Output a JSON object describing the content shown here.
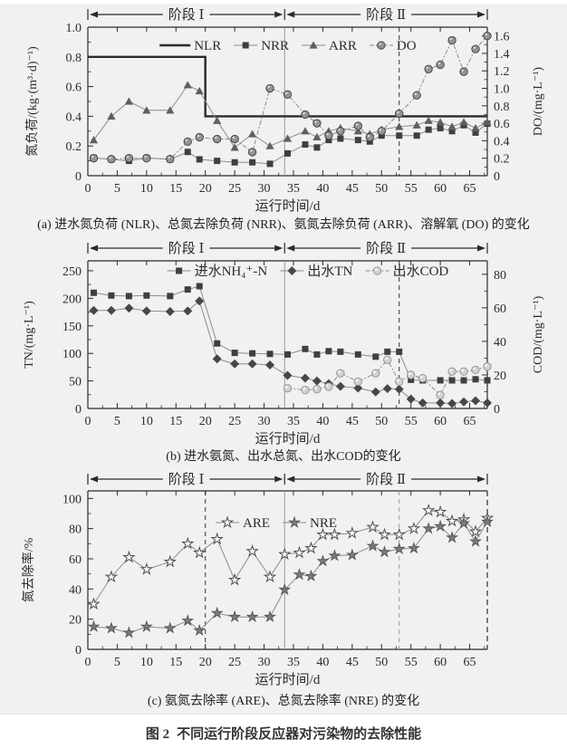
{
  "page": {
    "figure_caption_bold": "图 2",
    "figure_caption": "不同运行阶段反应器对污染物的去除性能",
    "colors": {
      "ink": "#2b2b2b",
      "gray_line": "#8c8c8c",
      "marker_square": "#3f3f3f",
      "marker_triangle": "#5f5f5f",
      "marker_diamond": "#474747",
      "sphere_dark_fill": "#949494",
      "sphere_dark_edge": "#3d3d3d",
      "sphere_light_fill": "#d2d2d2",
      "sphere_light_edge": "#8f8f8f",
      "star_fill": "#7b7b7b",
      "star_edge": "#4f4f4f",
      "phase_solid_line": "#9a9a9a",
      "dashed_black": "#333333",
      "dashed_gray": "#9a9a9a"
    }
  },
  "phases": {
    "label_1": "阶段 Ⅰ",
    "label_2": "阶段 Ⅱ",
    "boundary_day": 33.5,
    "x_start": 0,
    "x_end": 68
  },
  "chart_data": [
    {
      "id": "a",
      "type": "line",
      "caption": "(a) 进水氮负荷 (NLR)、总氮去除负荷 (NRR)、氨氮去除负荷 (ARR)、溶解氧 (DO) 的变化",
      "xlabel": "运行时间/d",
      "ylabel_left": "氮负荷/(kg·(m³·d)⁻¹)",
      "ylabel_right": "DO/(mg·L⁻¹)",
      "x_range": [
        0,
        68
      ],
      "x_ticks": [
        0,
        5,
        10,
        15,
        20,
        25,
        30,
        35,
        40,
        45,
        50,
        55,
        60,
        65
      ],
      "left_max": 1.0,
      "left_ticks": [
        0,
        0.2,
        0.4,
        0.6,
        0.8,
        1.0
      ],
      "left_decimals": 1,
      "right_max": 1.7,
      "right_ticks": [
        0,
        0.2,
        0.4,
        0.6,
        0.8,
        1.0,
        1.2,
        1.4,
        1.6
      ],
      "right_decimals": 1,
      "vlines": [
        {
          "x": 33.5,
          "style": "solid"
        },
        {
          "x": 53,
          "style": "dashed-black"
        }
      ],
      "right_spine_dashed": false,
      "series": [
        {
          "label": "NLR",
          "axis": "left",
          "marker": "none",
          "line": "thick",
          "x": [
            0,
            20,
            20,
            68
          ],
          "y": [
            0.8,
            0.8,
            0.4,
            0.4
          ]
        },
        {
          "label": "NRR",
          "axis": "left",
          "marker": "square",
          "line": "thin",
          "x": [
            1,
            4,
            7,
            10,
            14,
            17,
            19,
            22,
            25,
            28,
            31,
            34,
            37,
            39,
            41,
            43,
            46,
            48,
            50,
            53,
            56,
            58,
            60,
            62,
            64,
            66,
            68
          ],
          "y": [
            0.12,
            0.11,
            0.1,
            0.12,
            0.11,
            0.16,
            0.11,
            0.1,
            0.09,
            0.09,
            0.08,
            0.15,
            0.21,
            0.19,
            0.24,
            0.25,
            0.24,
            0.23,
            0.27,
            0.27,
            0.27,
            0.31,
            0.32,
            0.3,
            0.34,
            0.29,
            0.35
          ]
        },
        {
          "label": "ARR",
          "axis": "left",
          "marker": "triangle",
          "line": "thin",
          "x": [
            1,
            4,
            7,
            10,
            14,
            17,
            19,
            22,
            25,
            28,
            31,
            34,
            37,
            39,
            41,
            43,
            46,
            48,
            50,
            53,
            56,
            58,
            60,
            62,
            64,
            66,
            68
          ],
          "y": [
            0.24,
            0.4,
            0.5,
            0.44,
            0.44,
            0.61,
            0.57,
            0.37,
            0.19,
            0.28,
            0.2,
            0.25,
            0.3,
            0.26,
            0.3,
            0.32,
            0.3,
            0.28,
            0.31,
            0.33,
            0.34,
            0.37,
            0.36,
            0.33,
            0.36,
            0.32,
            0.36
          ]
        },
        {
          "label": "DO",
          "axis": "right",
          "marker": "sphere",
          "line": "dash",
          "x": [
            1,
            4,
            7,
            10,
            14,
            17,
            19,
            22,
            25,
            28,
            31,
            34,
            37,
            39,
            41,
            43,
            46,
            48,
            50,
            53,
            56,
            58,
            60,
            62,
            64,
            66,
            68
          ],
          "y": [
            0.2,
            0.19,
            0.2,
            0.2,
            0.19,
            0.39,
            0.44,
            0.42,
            0.42,
            0.27,
            1.0,
            0.93,
            0.7,
            0.6,
            0.46,
            0.51,
            0.57,
            0.44,
            0.51,
            0.71,
            0.92,
            1.22,
            1.27,
            1.55,
            1.19,
            1.45,
            1.6
          ]
        }
      ]
    },
    {
      "id": "b",
      "type": "line",
      "caption": "(b) 进水氨氮、出水总氮、出水COD的变化",
      "xlabel": "运行时间/d",
      "ylabel_left": "TN/(mg·L⁻¹)",
      "ylabel_right": "COD/(mg·L⁻¹)",
      "x_range": [
        0,
        68
      ],
      "x_ticks": [
        0,
        5,
        10,
        15,
        20,
        25,
        30,
        35,
        40,
        45,
        50,
        55,
        60,
        65
      ],
      "left_max": 268,
      "left_ticks": [
        0,
        50,
        100,
        150,
        200,
        250
      ],
      "left_decimals": 0,
      "right_max": 88,
      "right_ticks": [
        0,
        20,
        40,
        60,
        80
      ],
      "right_decimals": 0,
      "vlines": [
        {
          "x": 33.5,
          "style": "solid"
        },
        {
          "x": 53,
          "style": "dashed-black"
        }
      ],
      "right_spine_dashed": false,
      "series": [
        {
          "label": "进水NH₄⁺-N",
          "axis": "left",
          "marker": "square",
          "line": "thin",
          "x": [
            1,
            4,
            7,
            10,
            14,
            17,
            19,
            22,
            25,
            28,
            31,
            34,
            37,
            39,
            41,
            43,
            46,
            49,
            51,
            53,
            55,
            57,
            60,
            62,
            64,
            66,
            68
          ],
          "y": [
            210,
            205,
            204,
            205,
            204,
            216,
            222,
            118,
            101,
            100,
            99,
            98,
            108,
            98,
            104,
            103,
            98,
            94,
            103,
            103,
            52,
            51,
            51,
            51,
            51,
            53,
            51
          ]
        },
        {
          "label": "出水TN",
          "axis": "left",
          "marker": "diamond",
          "line": "thin",
          "x": [
            1,
            4,
            7,
            10,
            14,
            17,
            19,
            22,
            25,
            28,
            31,
            34,
            37,
            39,
            41,
            43,
            46,
            49,
            51,
            53,
            55,
            57,
            60,
            62,
            64,
            66,
            68
          ],
          "y": [
            178,
            178,
            182,
            177,
            176,
            177,
            195,
            90,
            81,
            81,
            79,
            60,
            55,
            50,
            45,
            40,
            37,
            30,
            36,
            35,
            17,
            10,
            10,
            9,
            12,
            14,
            10
          ]
        },
        {
          "label": "出水COD",
          "axis": "right",
          "marker": "sphere-light",
          "line": "dash",
          "x": [
            1,
            4,
            7,
            10,
            14,
            17,
            19,
            22,
            25,
            28,
            31,
            34,
            37,
            39,
            41,
            43,
            46,
            49,
            51,
            53,
            55,
            57,
            60,
            62,
            64,
            66,
            68
          ],
          "y": [
            null,
            null,
            null,
            null,
            null,
            null,
            null,
            null,
            null,
            null,
            null,
            12,
            11,
            11.5,
            13,
            21,
            16,
            21,
            29,
            16,
            20,
            18,
            8,
            22,
            22,
            23,
            25
          ]
        }
      ]
    },
    {
      "id": "c",
      "type": "line",
      "caption": "(c) 氨氮去除率 (ARE)、总氮去除率 (NRE) 的变化",
      "xlabel": "运行时间/d",
      "ylabel_left": "氮去除率/%",
      "ylabel_right": "",
      "x_range": [
        0,
        68
      ],
      "x_ticks": [
        0,
        5,
        10,
        15,
        20,
        25,
        30,
        35,
        40,
        45,
        50,
        55,
        60,
        65
      ],
      "left_max": 105,
      "left_ticks": [
        0,
        20,
        40,
        60,
        80,
        100
      ],
      "left_decimals": 0,
      "right_max": 105,
      "right_ticks": [],
      "right_decimals": 0,
      "vlines": [
        {
          "x": 20,
          "style": "dashed-black"
        },
        {
          "x": 33.5,
          "style": "solid"
        },
        {
          "x": 53,
          "style": "dashed-gray"
        }
      ],
      "right_spine_dashed": true,
      "series": [
        {
          "label": "ARE",
          "axis": "left",
          "marker": "star-open",
          "line": "thin",
          "x": [
            1,
            4,
            7,
            10,
            14,
            17,
            19,
            22,
            25,
            28,
            31,
            33.5,
            36,
            38,
            40,
            42,
            45,
            48.5,
            50.5,
            53,
            55.5,
            58,
            60,
            62,
            64,
            66,
            68
          ],
          "y": [
            30,
            48,
            61,
            53,
            58,
            70,
            64,
            73,
            46,
            65,
            48,
            63,
            64,
            67,
            76,
            76,
            77,
            81,
            76,
            76,
            80,
            92,
            91,
            85,
            86,
            78,
            87
          ]
        },
        {
          "label": "NRE",
          "axis": "left",
          "marker": "star-filled",
          "line": "thin",
          "x": [
            1,
            4,
            7,
            10,
            14,
            17,
            19,
            22,
            25,
            28,
            31,
            33.5,
            36,
            38,
            40,
            42,
            45,
            48.5,
            50.5,
            53,
            55.5,
            58,
            60,
            62,
            64,
            66,
            68
          ],
          "y": [
            15,
            14,
            11,
            15,
            14,
            19,
            12.5,
            24,
            21.5,
            21.5,
            21.5,
            39.5,
            49.5,
            48.5,
            58.5,
            62,
            62.5,
            68.5,
            64.5,
            66.5,
            67,
            80,
            81.5,
            74,
            83.5,
            71.5,
            84.5
          ]
        }
      ]
    }
  ]
}
